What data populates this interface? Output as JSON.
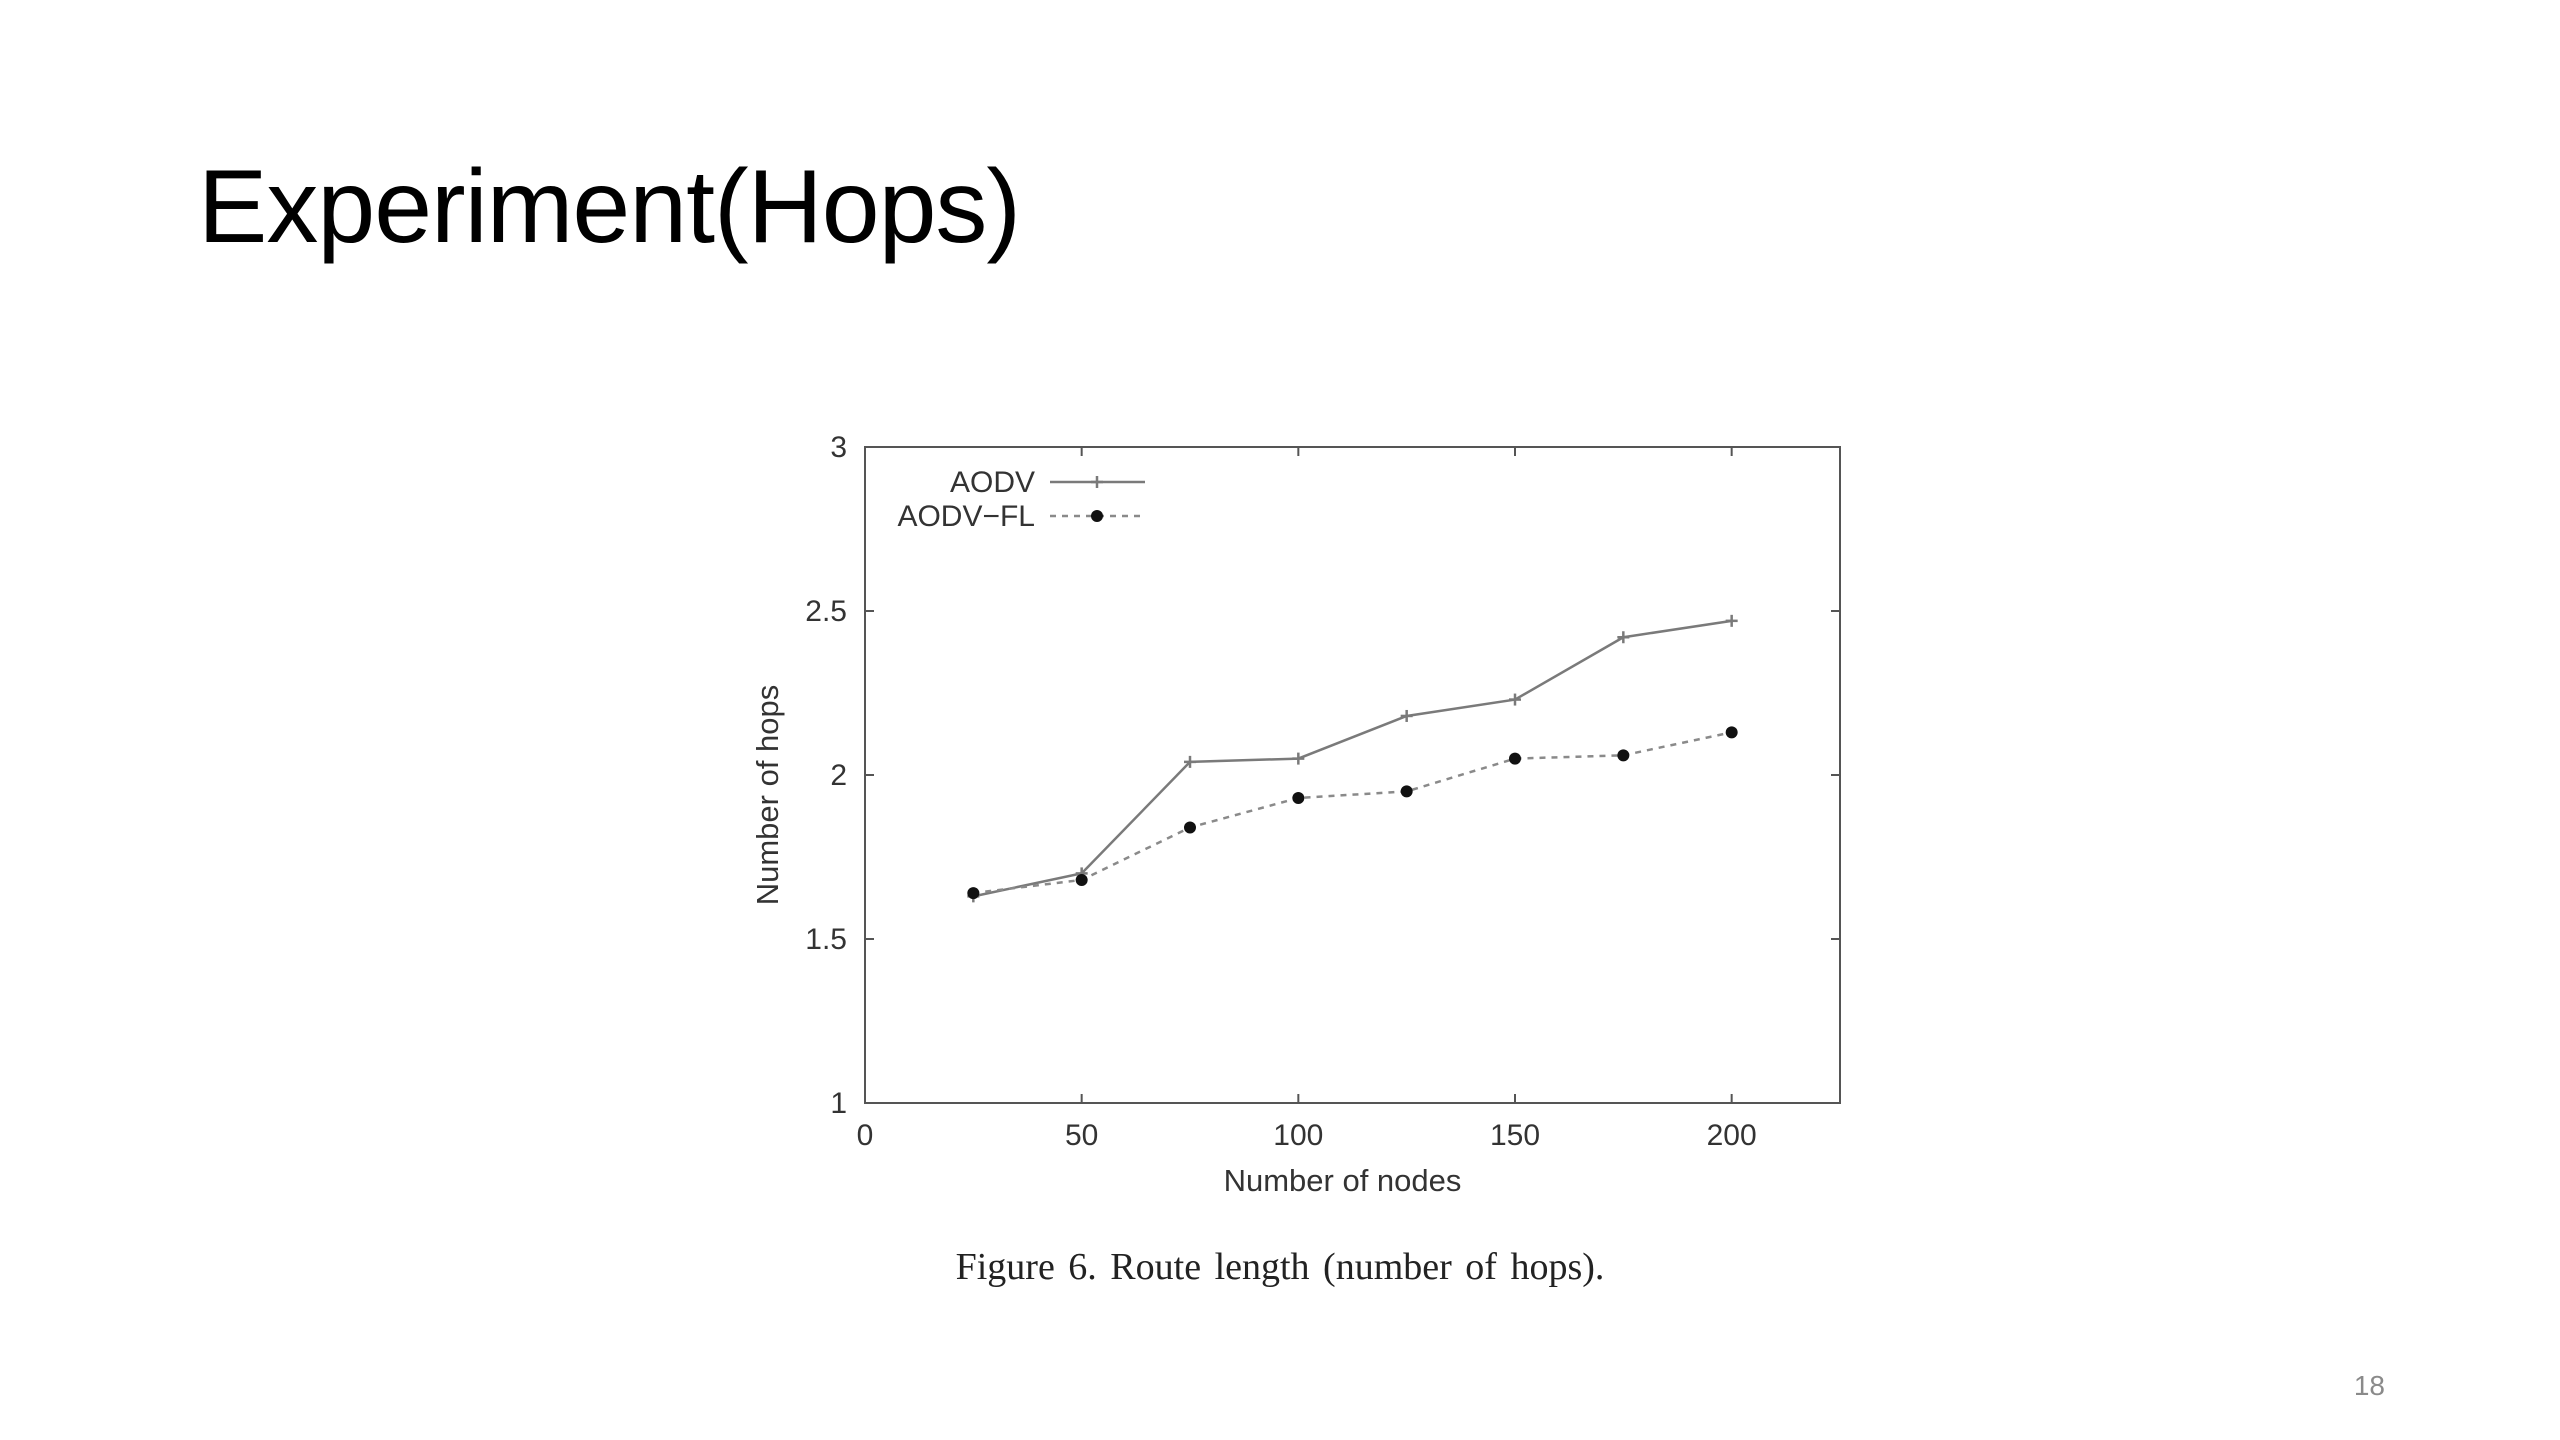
{
  "slide": {
    "title": "Experiment(Hops)",
    "caption": "Figure 6.   Route length (number of hops).",
    "page_number": "18"
  },
  "chart_data": {
    "type": "line",
    "title": "",
    "xlabel": "Number of nodes",
    "ylabel": "Number of hops",
    "xlim": [
      0,
      225
    ],
    "ylim": [
      1,
      3
    ],
    "x_ticks": [
      0,
      50,
      100,
      150,
      200
    ],
    "x_tick_labels": [
      "0",
      "50",
      "100",
      "150",
      "200"
    ],
    "y_ticks": [
      1,
      1.5,
      2,
      2.5,
      3
    ],
    "y_tick_labels": [
      "1",
      "1.5",
      "2",
      "2.5",
      "3"
    ],
    "grid": false,
    "legend_position": "top-left",
    "x": [
      25,
      50,
      75,
      100,
      125,
      150,
      175,
      200
    ],
    "series": [
      {
        "name": "AODV",
        "values": [
          1.63,
          1.7,
          2.04,
          2.05,
          2.18,
          2.23,
          2.42,
          2.47
        ],
        "line_style": "solid",
        "marker": "plus",
        "color": "#7a7a7a"
      },
      {
        "name": "AODV−FL",
        "values": [
          1.64,
          1.68,
          1.84,
          1.93,
          1.95,
          2.05,
          2.06,
          2.13
        ],
        "line_style": "dotted",
        "marker": "circle",
        "color": "#8a8a8a"
      }
    ]
  }
}
